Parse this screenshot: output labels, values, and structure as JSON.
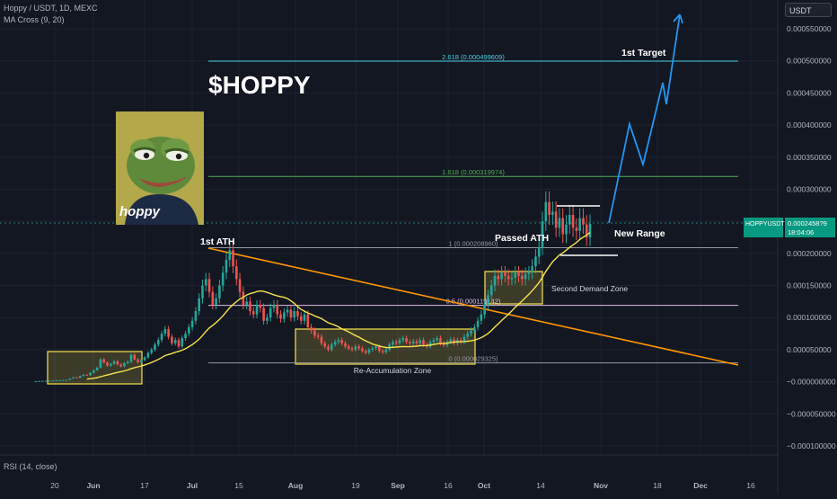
{
  "header": {
    "symbol_line": "Hoppy / USDT, 1D, MEXC",
    "indicator": "MA Cross (9, 20)",
    "rsi_label": "RSI (14, close)"
  },
  "currency_button": "USDT",
  "title_overlay": "$HOPPY",
  "avatar_text": "hoppy",
  "price_label": {
    "symbol": "HOPPYUSDT",
    "price": "0.0002458?9",
    "countdown": "18:04:06"
  },
  "annotations": {
    "first_ath": "1st ATH",
    "passed_ath": "Passed ATH",
    "new_range": "New Range",
    "first_target": "1st Target",
    "second_demand": "Second Demand Zone",
    "reaccumulation": "Re-Accumulation Zone"
  },
  "fib_levels": [
    {
      "label": "2.618 (0.000499609)",
      "value": 0.000499609,
      "color": "#4dd0e1"
    },
    {
      "label": "1.618 (0.000319974)",
      "value": 0.000319974,
      "color": "#4caf50"
    },
    {
      "label": "1 (0.000208960)",
      "value": 0.00020896,
      "color": "#9598a1"
    },
    {
      "label": "0.5 (0.000119142)",
      "value": 0.000119142,
      "color": "#e1bee7"
    },
    {
      "label": "0 (0.000029325)",
      "value": 2.9325e-05,
      "color": "#9598a1"
    }
  ],
  "colors": {
    "background": "#131722",
    "up": "#26a69a",
    "down": "#ef5350",
    "ma": "#f7e34c",
    "trendline": "#ff9800",
    "projection": "#2196f3",
    "zone": "#f7e34c"
  },
  "chart_data": {
    "type": "candlestick",
    "title": "Hoppy / USDT, 1D, MEXC",
    "x_ticks": [
      "20",
      "Jun",
      "17",
      "Jul",
      "15",
      "Aug",
      "19",
      "Sep",
      "16",
      "Oct",
      "14",
      "Nov",
      "18",
      "Dec",
      "16"
    ],
    "y_ticks": [
      "0.000550000",
      "0.000500000",
      "0.000450000",
      "0.000400000",
      "0.000350000",
      "0.000300000",
      "0.000250000",
      "0.000200000",
      "0.000150000",
      "0.000100000",
      "0.000050000",
      "−0.000000000",
      "−0.000050000",
      "−0.000100000"
    ],
    "ylim": [
      -0.0001,
      0.00058
    ],
    "candles_close": [
      9e-07,
      1.2e-06,
      1.4e-06,
      1.6e-06,
      1.8e-06,
      2e-06,
      2.2e-06,
      2.5e-06,
      2.8e-06,
      3e-06,
      5e-06,
      7e-06,
      6e-06,
      9e-06,
      1.1e-05,
      1e-05,
      1.4e-05,
      1.8e-05,
      2.2e-05,
      3.5e-05,
      3e-05,
      2.5e-05,
      2.8e-05,
      3.2e-05,
      2.7e-05,
      2.4e-05,
      2.9e-05,
      3.1e-05,
      4.2e-05,
      3.5e-05,
      3e-05,
      3.4e-05,
      3.8e-05,
      4.5e-05,
      5e-05,
      5.8e-05,
      6.5e-05,
      7.5e-05,
      8.2e-05,
      7e-05,
      6e-05,
      6.5e-05,
      5.5e-05,
      6.8e-05,
      7.5e-05,
      8.5e-05,
      9.5e-05,
      0.00011,
      0.00013,
      0.00015,
      0.00016,
      0.00014,
      0.00012,
      0.00013,
      0.00015,
      0.00017,
      0.00019,
      0.000205,
      0.00018,
      0.00016,
      0.00014,
      0.00012,
      0.000125,
      0.00011,
      0.000105,
      0.00012,
      0.000115,
      9.5e-05,
      0.0001,
      0.000115,
      0.00012,
      0.000105,
      9.8e-05,
      0.000108,
      0.000112,
      0.0001,
      0.00011,
      0.000102,
      9.5e-05,
      0.000105,
      8.5e-05,
      8e-05,
      7.2e-05,
      7e-05,
      6e-05,
      5.5e-05,
      5e-05,
      5.8e-05,
      6.2e-05,
      6.5e-05,
      6e-05,
      5.5e-05,
      5.2e-05,
      5e-05,
      5.5e-05,
      5.2e-05,
      4.8e-05,
      4.5e-05,
      5e-05,
      5.2e-05,
      5.5e-05,
      4.8e-05,
      4.6e-05,
      5e-05,
      5.8e-05,
      6.2e-05,
      6e-05,
      6.5e-05,
      6.8e-05,
      6.2e-05,
      6e-05,
      6.3e-05,
      6e-05,
      6.5e-05,
      5.8e-05,
      5.5e-05,
      6.2e-05,
      6.5e-05,
      6.8e-05,
      6e-05,
      5.7e-05,
      6.2e-05,
      6.6e-05,
      6e-05,
      6.5e-05,
      6.2e-05,
      7e-05,
      7.5e-05,
      8e-05,
      8.5e-05,
      9.5e-05,
      0.000105,
      0.00012,
      0.000135,
      0.00015,
      0.000165,
      0.00016,
      0.00017,
      0.000165,
      0.00016,
      0.000162,
      0.00017,
      0.000165,
      0.00016,
      0.000168,
      0.00017,
      0.00018,
      0.000195,
      0.00021,
      0.00025,
      0.00028,
      0.00026,
      0.000265,
      0.00024,
      0.000255,
      0.00023,
      0.000245,
      0.00026,
      0.00024,
      0.000235,
      0.000255,
      0.000245,
      0.000225,
      0.000246
    ],
    "ma_label": "MA Cross (9, 20)",
    "series_lines": [
      "trendline",
      "projection"
    ]
  }
}
